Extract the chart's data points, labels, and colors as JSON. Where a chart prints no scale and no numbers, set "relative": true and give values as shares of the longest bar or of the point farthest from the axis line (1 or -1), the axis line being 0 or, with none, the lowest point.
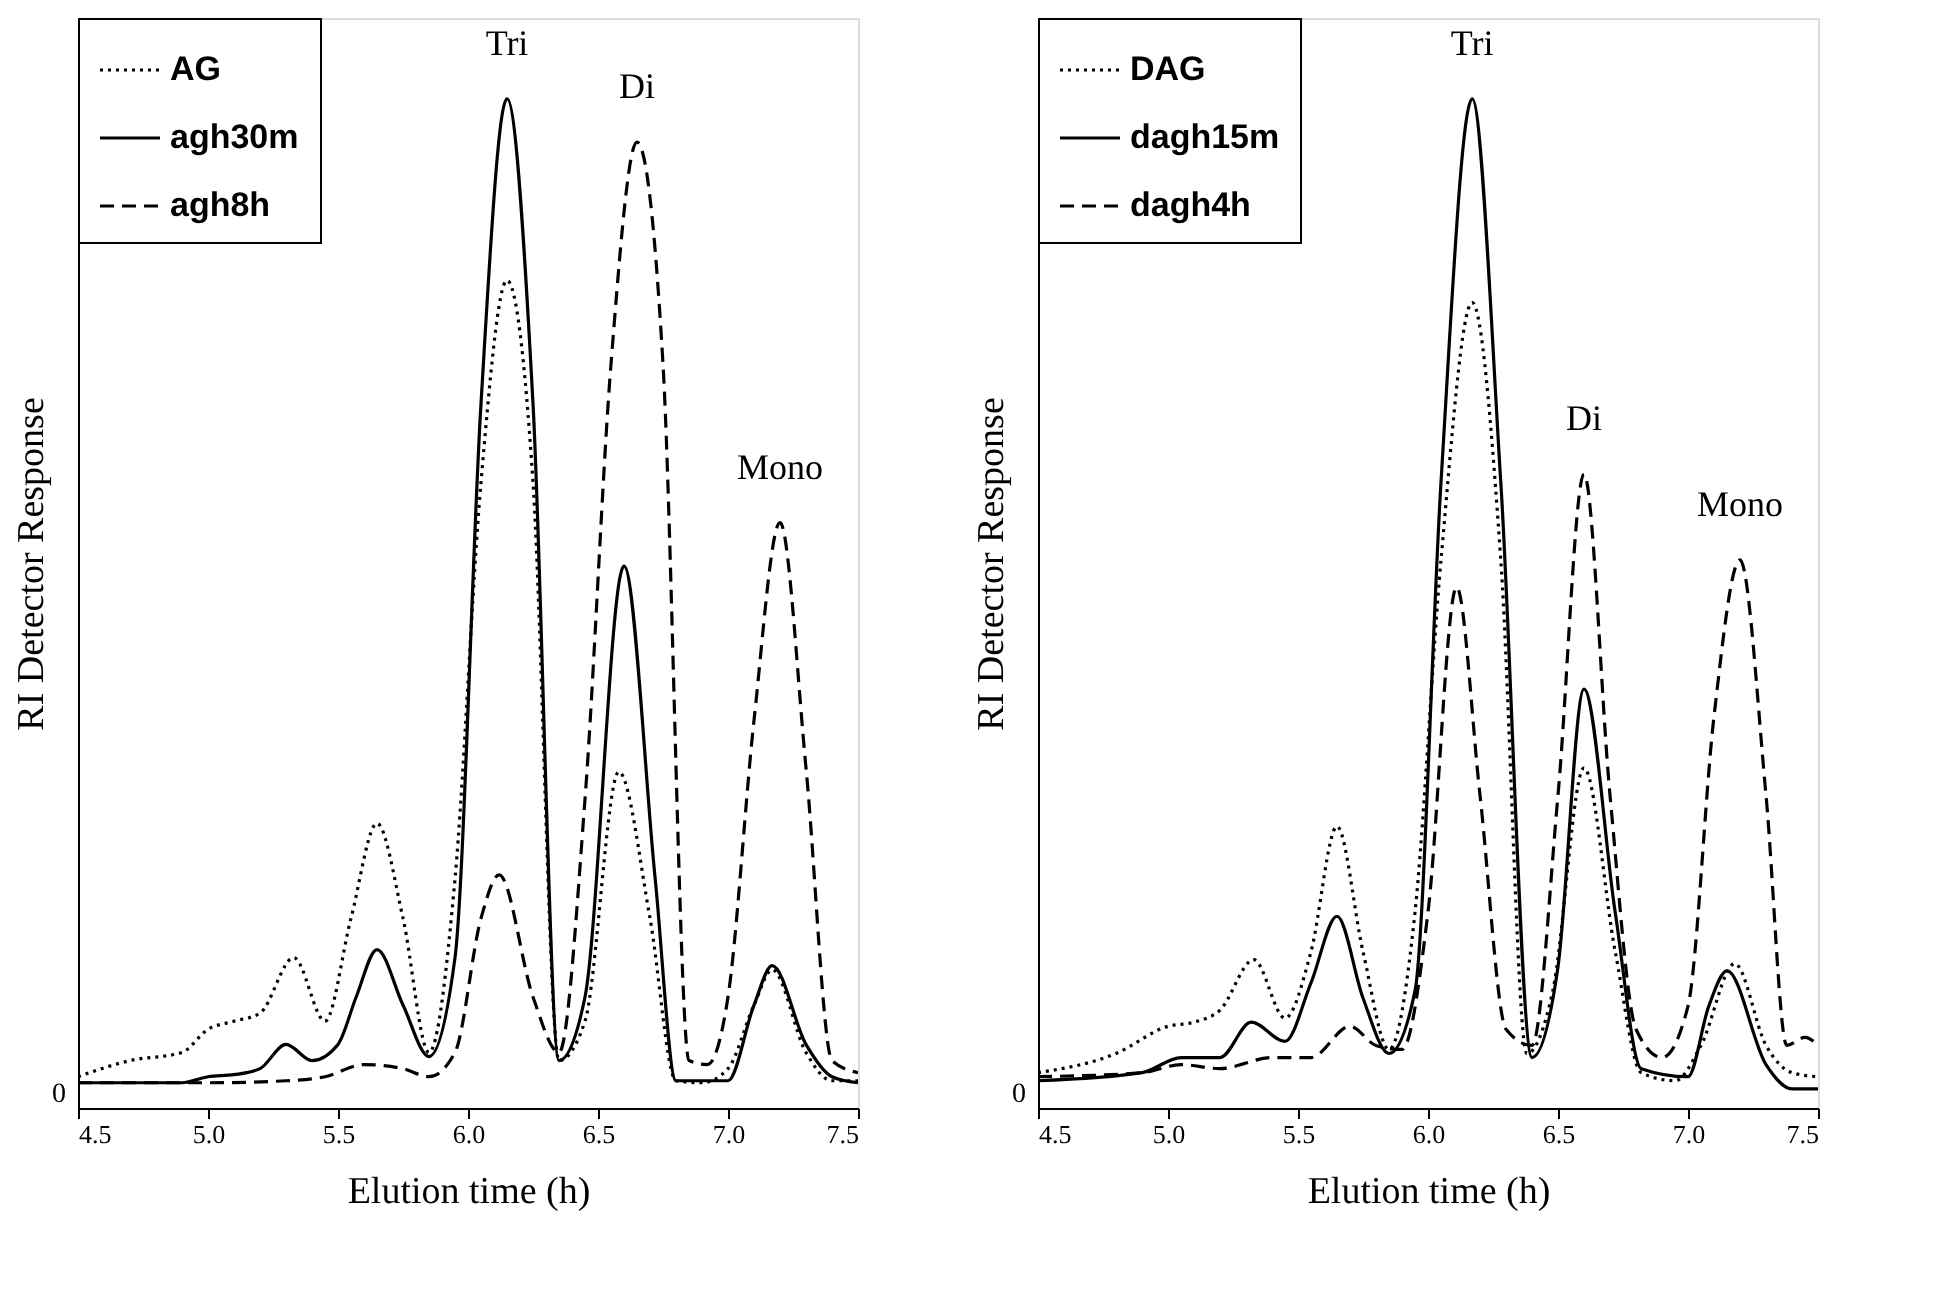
{
  "chart_data": [
    {
      "type": "line",
      "relative": true,
      "xlabel": "Elution time (h)",
      "ylabel": "RI Detector Response",
      "xlim": [
        4.5,
        7.5
      ],
      "xticks": [
        {
          "value": 4.5,
          "label": "4.5"
        },
        {
          "value": 5.0,
          "label": "5.0"
        },
        {
          "value": 5.5,
          "label": "5.5"
        },
        {
          "value": 6.0,
          "label": "6.0"
        },
        {
          "value": 6.5,
          "label": "6.5"
        },
        {
          "value": 7.0,
          "label": "7.0"
        },
        {
          "value": 7.5,
          "label": "7.5"
        }
      ],
      "legend": "top left",
      "grid": false,
      "annotations": [
        {
          "text": "Tri",
          "x": 6.15,
          "y": 1.0
        },
        {
          "text": "Di",
          "x": 6.65,
          "y": 0.957
        },
        {
          "text": "Mono",
          "x": 7.2,
          "y": 0.58
        },
        "0"
      ],
      "series": [
        {
          "name": "AG",
          "color": "#000000",
          "line_style": "dotted",
          "x": [
            4.5,
            4.7,
            4.9,
            5.0,
            5.1,
            5.2,
            5.33,
            5.45,
            5.55,
            5.65,
            5.75,
            5.85,
            5.95,
            6.05,
            6.15,
            6.25,
            6.35,
            6.45,
            6.58,
            6.7,
            6.8,
            6.9,
            7.0,
            7.1,
            7.17,
            7.3,
            7.4,
            7.5
          ],
          "values": [
            0.031,
            0.047,
            0.055,
            0.078,
            0.086,
            0.094,
            0.149,
            0.086,
            0.188,
            0.282,
            0.188,
            0.055,
            0.227,
            0.62,
            0.82,
            0.62,
            0.047,
            0.086,
            0.333,
            0.188,
            0.027,
            0.025,
            0.039,
            0.102,
            0.137,
            0.055,
            0.027,
            0.027
          ]
        },
        {
          "name": "agh30m",
          "color": "#000000",
          "line_style": "solid",
          "x": [
            4.5,
            4.9,
            5.0,
            5.1,
            5.2,
            5.3,
            5.4,
            5.5,
            5.57,
            5.65,
            5.75,
            5.85,
            5.95,
            6.05,
            6.15,
            6.25,
            6.35,
            6.45,
            6.6,
            6.72,
            6.8,
            7.0,
            7.1,
            7.17,
            7.3,
            7.4,
            7.5
          ],
          "values": [
            0.025,
            0.025,
            0.031,
            0.033,
            0.039,
            0.063,
            0.047,
            0.063,
            0.11,
            0.157,
            0.102,
            0.051,
            0.149,
            0.698,
            1.0,
            0.698,
            0.047,
            0.11,
            0.537,
            0.227,
            0.027,
            0.027,
            0.102,
            0.141,
            0.063,
            0.031,
            0.025
          ]
        },
        {
          "name": "agh8h",
          "color": "#000000",
          "line_style": "dashed",
          "x": [
            4.5,
            5.0,
            5.3,
            5.45,
            5.6,
            5.75,
            5.85,
            5.95,
            6.05,
            6.12,
            6.25,
            6.35,
            6.45,
            6.55,
            6.65,
            6.75,
            6.85,
            6.92,
            7.0,
            7.1,
            7.2,
            7.3,
            7.4,
            7.5
          ],
          "values": [
            0.025,
            0.025,
            0.027,
            0.031,
            0.043,
            0.039,
            0.031,
            0.055,
            0.188,
            0.231,
            0.11,
            0.055,
            0.306,
            0.737,
            0.957,
            0.737,
            0.047,
            0.043,
            0.11,
            0.384,
            0.58,
            0.337,
            0.047,
            0.035
          ]
        }
      ]
    },
    {
      "type": "line",
      "relative": true,
      "xlabel": "Elution time (h)",
      "ylabel": "RI Detector Response",
      "xlim": [
        4.5,
        7.5
      ],
      "xticks": [
        {
          "value": 4.5,
          "label": "4.5"
        },
        {
          "value": 5.0,
          "label": "5.0"
        },
        {
          "value": 5.5,
          "label": "5.5"
        },
        {
          "value": 6.0,
          "label": "6.0"
        },
        {
          "value": 6.5,
          "label": "6.5"
        },
        {
          "value": 7.0,
          "label": "7.0"
        },
        {
          "value": 7.5,
          "label": "7.5"
        }
      ],
      "legend": "top left",
      "grid": false,
      "annotations": [
        {
          "text": "Tri",
          "x": 6.17,
          "y": 1.0
        },
        {
          "text": "Di",
          "x": 6.6,
          "y": 0.628
        },
        {
          "text": "Mono",
          "x": 7.2,
          "y": 0.543
        },
        "0"
      ],
      "series": [
        {
          "name": "DAG",
          "color": "#000000",
          "line_style": "dotted",
          "x": [
            4.5,
            4.8,
            5.0,
            5.1,
            5.2,
            5.33,
            5.45,
            5.55,
            5.65,
            5.75,
            5.85,
            5.95,
            6.05,
            6.17,
            6.28,
            6.38,
            6.48,
            6.6,
            6.72,
            6.82,
            6.95,
            7.05,
            7.18,
            7.3,
            7.4,
            7.5
          ],
          "values": [
            0.035,
            0.054,
            0.081,
            0.085,
            0.097,
            0.147,
            0.089,
            0.155,
            0.279,
            0.155,
            0.058,
            0.194,
            0.543,
            0.798,
            0.543,
            0.054,
            0.116,
            0.337,
            0.155,
            0.035,
            0.027,
            0.062,
            0.143,
            0.062,
            0.035,
            0.031
          ]
        },
        {
          "name": "dagh15m",
          "color": "#000000",
          "line_style": "solid",
          "x": [
            4.5,
            4.9,
            5.05,
            5.2,
            5.32,
            5.45,
            5.55,
            5.65,
            5.75,
            5.85,
            5.95,
            6.05,
            6.17,
            6.28,
            6.4,
            6.5,
            6.6,
            6.72,
            6.82,
            7.0,
            7.08,
            7.15,
            7.3,
            7.4,
            7.5
          ],
          "values": [
            0.027,
            0.035,
            0.05,
            0.05,
            0.085,
            0.066,
            0.124,
            0.19,
            0.109,
            0.054,
            0.116,
            0.62,
            1.0,
            0.62,
            0.05,
            0.14,
            0.415,
            0.194,
            0.039,
            0.031,
            0.101,
            0.136,
            0.043,
            0.019,
            0.019
          ]
        },
        {
          "name": "dagh4h",
          "color": "#000000",
          "line_style": "dashed",
          "x": [
            4.5,
            4.9,
            5.05,
            5.2,
            5.4,
            5.55,
            5.7,
            5.8,
            5.9,
            6.0,
            6.11,
            6.2,
            6.3,
            6.4,
            6.5,
            6.6,
            6.7,
            6.8,
            6.9,
            7.0,
            7.1,
            7.2,
            7.3,
            7.38,
            7.45,
            7.5
          ],
          "values": [
            0.031,
            0.035,
            0.043,
            0.039,
            0.05,
            0.05,
            0.081,
            0.062,
            0.058,
            0.194,
            0.516,
            0.31,
            0.078,
            0.062,
            0.31,
            0.628,
            0.31,
            0.078,
            0.05,
            0.101,
            0.388,
            0.543,
            0.31,
            0.062,
            0.07,
            0.062
          ]
        }
      ]
    }
  ]
}
